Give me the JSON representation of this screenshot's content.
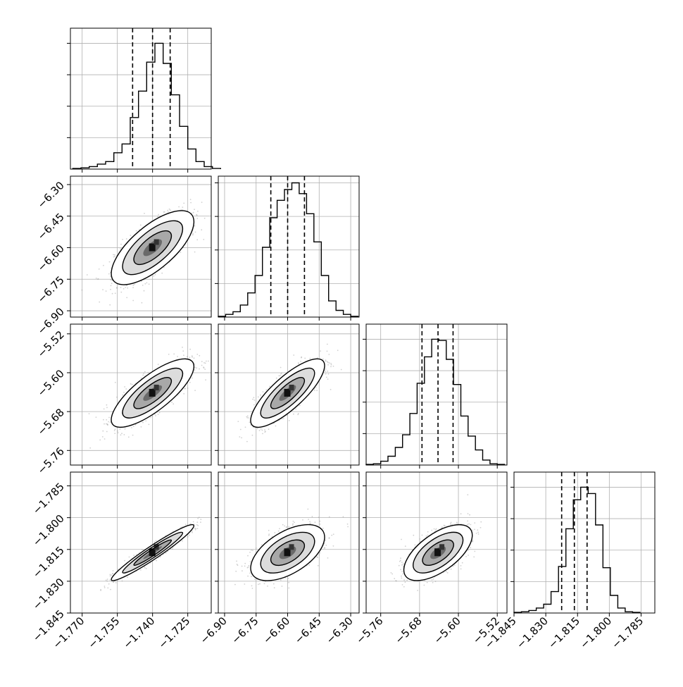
{
  "chart_data": {
    "type": "corner",
    "grid": true,
    "parameters": [
      {
        "range": [
          -1.775,
          -1.715
        ],
        "ticks": [
          -1.77,
          -1.755,
          -1.74,
          -1.725
        ],
        "tick_labels": [
          "−1.770",
          "−1.755",
          "−1.740",
          "−1.725"
        ],
        "quantiles": [
          -1.7485,
          -1.74,
          -1.7325
        ]
      },
      {
        "range": [
          -6.93,
          -6.26
        ],
        "ticks": [
          -6.9,
          -6.75,
          -6.6,
          -6.45,
          -6.3
        ],
        "tick_labels": [
          "−6.90",
          "−6.75",
          "−6.60",
          "−6.45",
          "−6.30"
        ],
        "quantiles": [
          -6.68,
          -6.6,
          -6.52
        ]
      },
      {
        "range": [
          -5.79,
          -5.5
        ],
        "ticks": [
          -5.76,
          -5.68,
          -5.6,
          -5.52
        ],
        "tick_labels": [
          "−5.76",
          "−5.68",
          "−5.60",
          "−5.52"
        ],
        "quantiles": [
          -5.675,
          -5.642,
          -5.611
        ]
      },
      {
        "range": [
          -1.845,
          -1.7785
        ],
        "ticks": [
          -1.845,
          -1.83,
          -1.815,
          -1.8,
          -1.785
        ],
        "tick_labels": [
          "−1.845",
          "−1.830",
          "−1.815",
          "−1.800",
          "−1.785"
        ],
        "quantiles": [
          -1.8225,
          -1.8165,
          -1.8105
        ]
      }
    ],
    "histograms": [
      {
        "bins": [
          -1.774,
          -1.7705,
          -1.767,
          -1.7635,
          -1.76,
          -1.7565,
          -1.753,
          -1.7495,
          -1.746,
          -1.7425,
          -1.739,
          -1.7355,
          -1.732,
          -1.7285,
          -1.725,
          -1.7215,
          -1.718,
          -1.7145,
          -1.711
        ],
        "counts": [
          0.5,
          1,
          2,
          4,
          6,
          13,
          20,
          41,
          62,
          85,
          100,
          84,
          59,
          34,
          16,
          6,
          2,
          0.5
        ]
      },
      {
        "bins": [
          -6.93,
          -6.895,
          -6.86,
          -6.825,
          -6.79,
          -6.755,
          -6.72,
          -6.685,
          -6.65,
          -6.615,
          -6.58,
          -6.545,
          -6.51,
          -6.475,
          -6.44,
          -6.405,
          -6.37,
          -6.335,
          -6.3,
          -6.265
        ],
        "counts": [
          0.5,
          2,
          4,
          9,
          18,
          31,
          52,
          74,
          87,
          95,
          100,
          92,
          77,
          56,
          31,
          12,
          5,
          2,
          0.5
        ]
      },
      {
        "bins": [
          -5.79,
          -5.775,
          -5.76,
          -5.745,
          -5.73,
          -5.715,
          -5.7,
          -5.685,
          -5.67,
          -5.655,
          -5.64,
          -5.625,
          -5.61,
          -5.595,
          -5.58,
          -5.565,
          -5.55,
          -5.535,
          -5.52,
          -5.505
        ],
        "counts": [
          0.5,
          1,
          3,
          7,
          14,
          24,
          41,
          65,
          86,
          100,
          99,
          84,
          64,
          39,
          23,
          12,
          4,
          1,
          0.5
        ]
      },
      {
        "bins": [
          -1.845,
          -1.8415,
          -1.838,
          -1.8345,
          -1.831,
          -1.8275,
          -1.824,
          -1.8205,
          -1.817,
          -1.8135,
          -1.81,
          -1.8065,
          -1.803,
          -1.7995,
          -1.796,
          -1.7925,
          -1.789,
          -1.7855
        ],
        "counts": [
          0.5,
          1,
          2,
          4,
          7,
          17,
          37,
          67,
          90,
          100,
          95,
          70,
          36,
          14,
          4,
          1,
          0.5
        ]
      }
    ],
    "pairs": [
      {
        "x": 0,
        "y": 1,
        "corr": 0.7
      },
      {
        "x": 0,
        "y": 2,
        "corr": 0.78
      },
      {
        "x": 1,
        "y": 2,
        "corr": 0.8
      },
      {
        "x": 0,
        "y": 3,
        "corr": 0.96
      },
      {
        "x": 1,
        "y": 3,
        "corr": 0.55
      },
      {
        "x": 2,
        "y": 3,
        "corr": 0.62
      }
    ],
    "colors": {
      "hist_line": "#000000",
      "contour": "#000000",
      "points": "#999999",
      "grid": "#b0b0b0",
      "frame": "#000000"
    }
  }
}
